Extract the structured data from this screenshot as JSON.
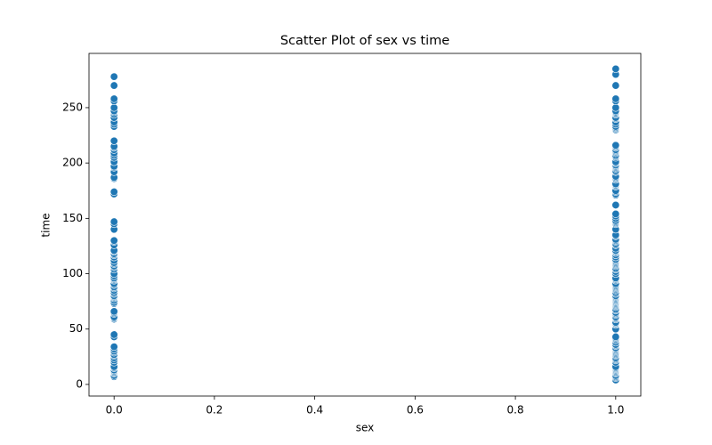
{
  "chart_data": {
    "type": "scatter",
    "title": "Scatter Plot of sex vs time",
    "xlabel": "sex",
    "ylabel": "time",
    "color": "#1f77b4",
    "grid": false,
    "xlim": [
      -0.05,
      1.05
    ],
    "ylim": [
      -10.5,
      299
    ],
    "xticks": [
      {
        "value": 0,
        "label": "0.0"
      },
      0.2,
      0.4,
      0.6,
      0.8,
      {
        "value": 1,
        "label": "1.0"
      }
    ],
    "yticks": [
      0,
      50,
      100,
      150,
      200,
      250
    ],
    "x": [
      0,
      0,
      0,
      0,
      0,
      0,
      0,
      0,
      0,
      0,
      0,
      0,
      0,
      0,
      0,
      0,
      0,
      0,
      0,
      0,
      0,
      0,
      0,
      0,
      0,
      0,
      0,
      0,
      0,
      0,
      0,
      0,
      0,
      0,
      0,
      0,
      0,
      0,
      0,
      0,
      0,
      0,
      0,
      0,
      0,
      0,
      0,
      0,
      0,
      0,
      0,
      0,
      0,
      0,
      0,
      0,
      0,
      0,
      0,
      0,
      0,
      0,
      0,
      0,
      0,
      0,
      0,
      0,
      0,
      0,
      0,
      0,
      0,
      0,
      0,
      0,
      0,
      0,
      0,
      0,
      0,
      0,
      0,
      0,
      0,
      0,
      0,
      1,
      1,
      1,
      1,
      1,
      1,
      1,
      1,
      1,
      1,
      1,
      1,
      1,
      1,
      1,
      1,
      1,
      1,
      1,
      1,
      1,
      1,
      1,
      1,
      1,
      1,
      1,
      1,
      1,
      1,
      1,
      1,
      1,
      1,
      1,
      1,
      1,
      1,
      1,
      1,
      1,
      1,
      1,
      1,
      1,
      1,
      1,
      1,
      1,
      1,
      1,
      1,
      1,
      1,
      1,
      1,
      1,
      1,
      1,
      1,
      1,
      1,
      1,
      1,
      1,
      1,
      1,
      1,
      1,
      1,
      1,
      1,
      1,
      1,
      1,
      1,
      1,
      1,
      1,
      1,
      1,
      1,
      1,
      1,
      1,
      1,
      1,
      1,
      1,
      1,
      1,
      1,
      1,
      1,
      1,
      1,
      1,
      1,
      1,
      1,
      1,
      1,
      1,
      1,
      1,
      1,
      1,
      1,
      1,
      1,
      1,
      1,
      1,
      1,
      1,
      1,
      1,
      1,
      1,
      1,
      1,
      1,
      1,
      1,
      1,
      1,
      1,
      1,
      1,
      1,
      1,
      1,
      1,
      1,
      1,
      1,
      1,
      1,
      1,
      1,
      1,
      1,
      1,
      1,
      1
    ],
    "values": [
      7,
      8,
      10,
      11,
      12,
      13,
      15,
      16,
      20,
      22,
      24,
      26,
      27,
      29,
      30,
      32,
      34,
      43,
      45,
      59,
      60,
      61,
      64,
      65,
      66,
      73,
      74,
      76,
      78,
      79,
      80,
      82,
      83,
      85,
      87,
      88,
      90,
      91,
      94,
      95,
      96,
      98,
      100,
      104,
      106,
      107,
      109,
      110,
      112,
      115,
      117,
      118,
      120,
      121,
      126,
      129,
      130,
      140,
      145,
      147,
      172,
      174,
      186,
      187,
      192,
      196,
      197,
      201,
      205,
      207,
      209,
      212,
      214,
      215,
      220,
      233,
      235,
      237,
      241,
      244,
      246,
      247,
      250,
      256,
      258,
      270,
      278,
      4,
      6,
      7,
      8,
      10,
      11,
      12,
      13,
      14,
      15,
      16,
      20,
      22,
      23,
      24,
      26,
      27,
      28,
      29,
      30,
      31,
      32,
      33,
      35,
      36,
      38,
      40,
      41,
      42,
      43,
      50,
      54,
      55,
      56,
      59,
      60,
      61,
      63,
      64,
      65,
      67,
      68,
      70,
      71,
      72,
      73,
      74,
      75,
      76,
      77,
      78,
      79,
      80,
      82,
      83,
      85,
      86,
      87,
      88,
      89,
      90,
      91,
      94,
      95,
      96,
      100,
      102,
      104,
      105,
      107,
      108,
      109,
      110,
      111,
      112,
      113,
      115,
      117,
      119,
      120,
      121,
      123,
      126,
      127,
      129,
      130,
      131,
      134,
      135,
      140,
      145,
      146,
      147,
      148,
      150,
      152,
      154,
      162,
      171,
      172,
      174,
      175,
      179,
      180,
      181,
      185,
      186,
      187,
      188,
      192,
      193,
      195,
      196,
      197,
      198,
      200,
      201,
      205,
      206,
      207,
      209,
      210,
      211,
      212,
      214,
      215,
      216,
      230,
      231,
      232,
      233,
      235,
      237,
      240,
      241,
      244,
      245,
      246,
      247,
      250,
      256,
      258,
      270,
      280,
      285
    ]
  }
}
